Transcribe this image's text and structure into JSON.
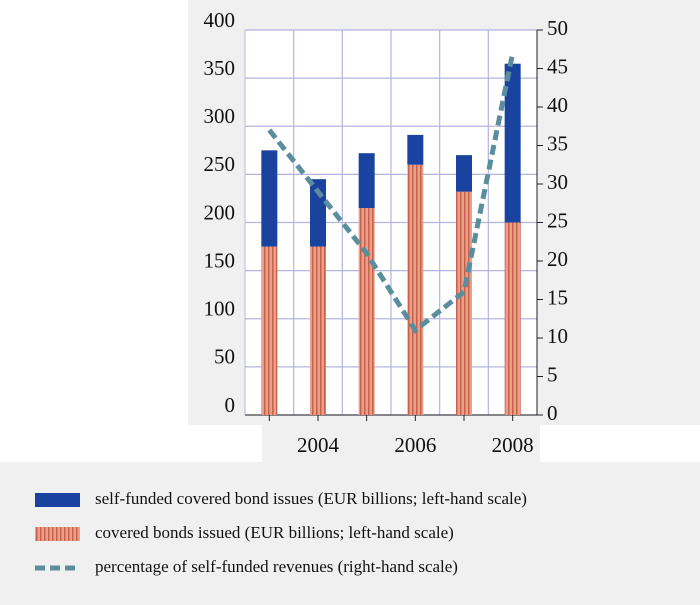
{
  "chart_data": {
    "type": "bar-line",
    "categories": [
      null,
      "2004",
      null,
      "2006",
      null,
      "2008"
    ],
    "series": [
      {
        "name": "self-funded covered bond issues (EUR billions; left-hand scale)",
        "type": "bar",
        "color": "#1a43a0",
        "values": [
          100,
          70,
          57,
          31,
          38,
          165
        ]
      },
      {
        "name": "covered bonds issued (EUR billions; left-hand scale)",
        "type": "bar",
        "color": "#e3927c",
        "values": [
          175,
          175,
          215,
          260,
          232,
          200
        ]
      },
      {
        "name": "percentage of self-funded revenues (right-hand scale)",
        "type": "line",
        "color": "#5a8e9e",
        "axis": "y2",
        "values": [
          37,
          29,
          21,
          11,
          16,
          47
        ]
      }
    ],
    "ylim": [
      0,
      400
    ],
    "yticks": [
      0,
      50,
      100,
      150,
      200,
      250,
      300,
      350,
      400
    ],
    "y2lim": [
      0,
      50
    ],
    "y2ticks": [
      0,
      5,
      10,
      15,
      20,
      25,
      30,
      35,
      40,
      45,
      50
    ],
    "grid": true
  }
}
